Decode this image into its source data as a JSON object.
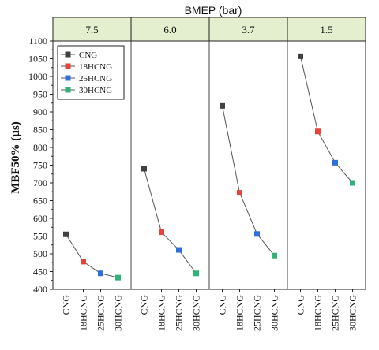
{
  "chart_data": {
    "type": "line",
    "group_axis_title": "BMEP (bar)",
    "ylabel": "MBF50% (µs)",
    "ylim": [
      400,
      1100
    ],
    "ytick_step": 50,
    "yticks": [
      "400",
      "450",
      "500",
      "550",
      "600",
      "650",
      "700",
      "750",
      "800",
      "850",
      "900",
      "950",
      "1000",
      "1050",
      "1100"
    ],
    "categories": [
      "CNG",
      "18HCNG",
      "25HCNG",
      "30HCNG"
    ],
    "legend": {
      "placement": "top-left",
      "entries": [
        {
          "name": "CNG",
          "color": "#404040"
        },
        {
          "name": "18HCNG",
          "color": "#e8423a"
        },
        {
          "name": "25HCNG",
          "color": "#2f6fd9"
        },
        {
          "name": "30HCNG",
          "color": "#2fb37a"
        }
      ]
    },
    "panels": [
      {
        "label": "7.5",
        "values": [
          555,
          478,
          445,
          433
        ]
      },
      {
        "label": "6.0",
        "values": [
          740,
          561,
          511,
          445
        ]
      },
      {
        "label": "3.7",
        "values": [
          917,
          672,
          556,
          495
        ]
      },
      {
        "label": "1.5",
        "values": [
          1057,
          845,
          757,
          700
        ]
      }
    ],
    "header_fill": "#e4efcf",
    "line_color": "#555555"
  }
}
